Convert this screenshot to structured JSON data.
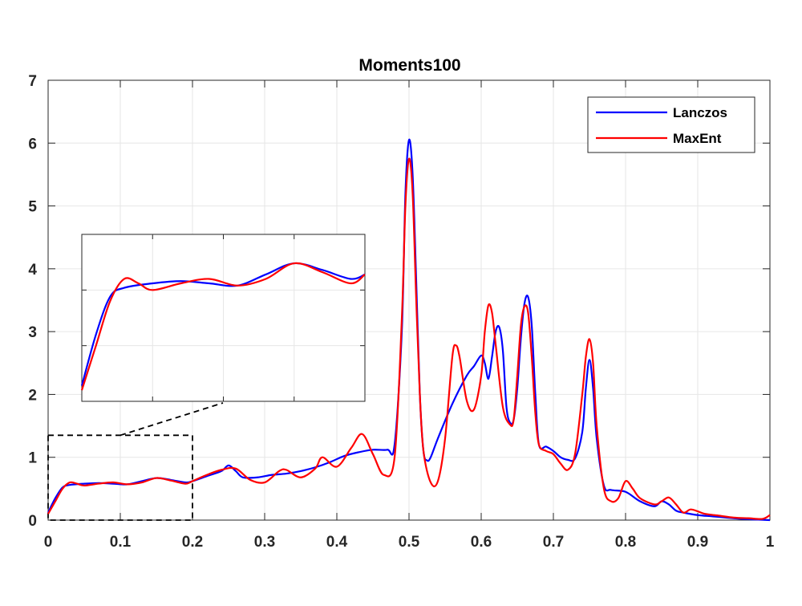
{
  "chart_data": {
    "type": "line",
    "title": "Moments100",
    "xlabel": "",
    "ylabel": "",
    "xlim": [
      0,
      1
    ],
    "ylim": [
      0,
      7
    ],
    "xticks": [
      "0",
      "0.1",
      "0.2",
      "0.3",
      "0.4",
      "0.5",
      "0.6",
      "0.7",
      "0.8",
      "0.9",
      "1"
    ],
    "yticks": [
      "0",
      "1",
      "2",
      "3",
      "4",
      "5",
      "6",
      "7"
    ],
    "grid": true,
    "legend_position": "top-right",
    "series": [
      {
        "name": "Lanczos",
        "color": "#0000ff",
        "x": [
          0,
          0.01,
          0.02,
          0.03,
          0.05,
          0.07,
          0.09,
          0.11,
          0.13,
          0.15,
          0.17,
          0.19,
          0.2,
          0.22,
          0.24,
          0.25,
          0.26,
          0.27,
          0.29,
          0.31,
          0.33,
          0.35,
          0.37,
          0.39,
          0.41,
          0.43,
          0.45,
          0.47,
          0.48,
          0.49,
          0.495,
          0.5,
          0.505,
          0.51,
          0.515,
          0.52,
          0.525,
          0.53,
          0.54,
          0.56,
          0.58,
          0.59,
          0.6,
          0.605,
          0.61,
          0.615,
          0.62,
          0.625,
          0.63,
          0.635,
          0.64,
          0.645,
          0.65,
          0.655,
          0.66,
          0.665,
          0.67,
          0.675,
          0.68,
          0.69,
          0.7,
          0.71,
          0.72,
          0.73,
          0.74,
          0.745,
          0.75,
          0.755,
          0.76,
          0.77,
          0.78,
          0.8,
          0.82,
          0.84,
          0.85,
          0.86,
          0.87,
          0.88,
          0.9,
          0.92,
          0.94,
          0.96,
          0.98,
          1.0
        ],
        "y": [
          0.12,
          0.35,
          0.52,
          0.56,
          0.58,
          0.59,
          0.58,
          0.57,
          0.62,
          0.67,
          0.64,
          0.6,
          0.62,
          0.7,
          0.78,
          0.87,
          0.78,
          0.68,
          0.68,
          0.72,
          0.74,
          0.78,
          0.84,
          0.92,
          1.02,
          1.08,
          1.12,
          1.12,
          1.2,
          3.0,
          5.2,
          6.05,
          5.5,
          3.8,
          2.0,
          1.1,
          0.95,
          1.0,
          1.3,
          1.85,
          2.3,
          2.45,
          2.62,
          2.5,
          2.25,
          2.6,
          3.0,
          3.07,
          2.7,
          1.8,
          1.55,
          1.6,
          2.1,
          2.9,
          3.45,
          3.55,
          3.1,
          2.0,
          1.2,
          1.17,
          1.1,
          1.0,
          0.96,
          0.98,
          1.4,
          2.1,
          2.55,
          2.1,
          1.3,
          0.55,
          0.48,
          0.45,
          0.3,
          0.22,
          0.3,
          0.25,
          0.15,
          0.12,
          0.08,
          0.06,
          0.04,
          0.02,
          0.01,
          0.0
        ]
      },
      {
        "name": "MaxEnt",
        "color": "#ff0000",
        "x": [
          0,
          0.01,
          0.02,
          0.03,
          0.04,
          0.05,
          0.07,
          0.09,
          0.11,
          0.13,
          0.15,
          0.17,
          0.19,
          0.2,
          0.22,
          0.24,
          0.26,
          0.28,
          0.3,
          0.32,
          0.33,
          0.35,
          0.37,
          0.38,
          0.4,
          0.42,
          0.435,
          0.45,
          0.465,
          0.48,
          0.49,
          0.495,
          0.5,
          0.505,
          0.51,
          0.515,
          0.52,
          0.53,
          0.54,
          0.55,
          0.56,
          0.565,
          0.57,
          0.58,
          0.59,
          0.6,
          0.605,
          0.61,
          0.615,
          0.62,
          0.63,
          0.64,
          0.645,
          0.65,
          0.655,
          0.66,
          0.665,
          0.67,
          0.675,
          0.68,
          0.69,
          0.7,
          0.71,
          0.72,
          0.73,
          0.74,
          0.745,
          0.75,
          0.755,
          0.76,
          0.77,
          0.78,
          0.79,
          0.8,
          0.81,
          0.82,
          0.84,
          0.85,
          0.86,
          0.87,
          0.88,
          0.89,
          0.9,
          0.91,
          0.93,
          0.95,
          0.97,
          0.99,
          1.0
        ],
        "y": [
          0.1,
          0.3,
          0.5,
          0.6,
          0.58,
          0.55,
          0.58,
          0.6,
          0.57,
          0.6,
          0.67,
          0.63,
          0.58,
          0.62,
          0.72,
          0.8,
          0.82,
          0.64,
          0.6,
          0.78,
          0.8,
          0.68,
          0.82,
          1.0,
          0.85,
          1.15,
          1.37,
          1.05,
          0.72,
          1.0,
          3.2,
          5.0,
          5.75,
          5.2,
          3.5,
          2.0,
          1.1,
          0.6,
          0.62,
          1.3,
          2.6,
          2.78,
          2.6,
          1.9,
          1.76,
          2.3,
          3.0,
          3.42,
          3.3,
          2.8,
          1.8,
          1.52,
          1.6,
          2.3,
          3.1,
          3.4,
          3.3,
          2.6,
          1.7,
          1.2,
          1.1,
          1.05,
          0.9,
          0.8,
          1.05,
          2.0,
          2.6,
          2.88,
          2.5,
          1.5,
          0.5,
          0.3,
          0.35,
          0.62,
          0.5,
          0.35,
          0.25,
          0.3,
          0.36,
          0.25,
          0.12,
          0.17,
          0.14,
          0.1,
          0.07,
          0.04,
          0.03,
          0.02,
          0.08
        ]
      }
    ],
    "inset": {
      "source_xlim": [
        0,
        0.2
      ],
      "source_ylim": [
        0,
        1.35
      ]
    }
  }
}
